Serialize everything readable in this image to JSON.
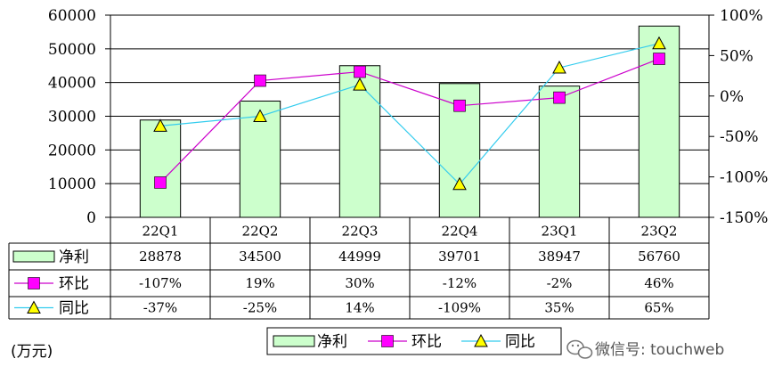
{
  "chart_data": {
    "type": "bar",
    "categories": [
      "22Q1",
      "22Q2",
      "22Q3",
      "22Q4",
      "23Q1",
      "23Q2"
    ],
    "left_axis": {
      "ylim": [
        0,
        60000
      ],
      "ticks": [
        "0",
        "10000",
        "20000",
        "30000",
        "40000",
        "50000",
        "60000"
      ]
    },
    "right_axis": {
      "ylim": [
        -150,
        100
      ],
      "ticks": [
        "-150%",
        "-100%",
        "-50%",
        "0%",
        "50%",
        "100%"
      ]
    },
    "grid": true,
    "legend_position": "bottom",
    "series": [
      {
        "name": "净利",
        "type": "bar",
        "axis": "left",
        "values": [
          28878,
          34500,
          44999,
          39701,
          38947,
          56760
        ],
        "labels": [
          "28878",
          "34500",
          "44999",
          "39701",
          "38947",
          "56760"
        ],
        "color": "#ccffcc",
        "marker": "box"
      },
      {
        "name": "环比",
        "type": "line",
        "axis": "right",
        "values": [
          -107,
          19,
          30,
          -12,
          -2,
          46
        ],
        "labels": [
          "-107%",
          "19%",
          "30%",
          "-12%",
          "-2%",
          "46%"
        ],
        "color": "#cc00cc",
        "marker": "square",
        "marker_color": "#ff00ff"
      },
      {
        "name": "同比",
        "type": "line",
        "axis": "right",
        "values": [
          -37,
          -25,
          14,
          -109,
          35,
          65
        ],
        "labels": [
          "-37%",
          "-25%",
          "14%",
          "-109%",
          "35%",
          "65%"
        ],
        "color": "#33ccee",
        "marker": "triangle",
        "marker_color": "#ffff00"
      }
    ]
  },
  "unit_label": "(万元)",
  "watermark": {
    "text": "微信号: touchweb",
    "icon": "wechat-icon"
  },
  "colors": {
    "bar_fill": "#ccffcc",
    "bar_stroke": "#000000",
    "grid": "#000000"
  }
}
